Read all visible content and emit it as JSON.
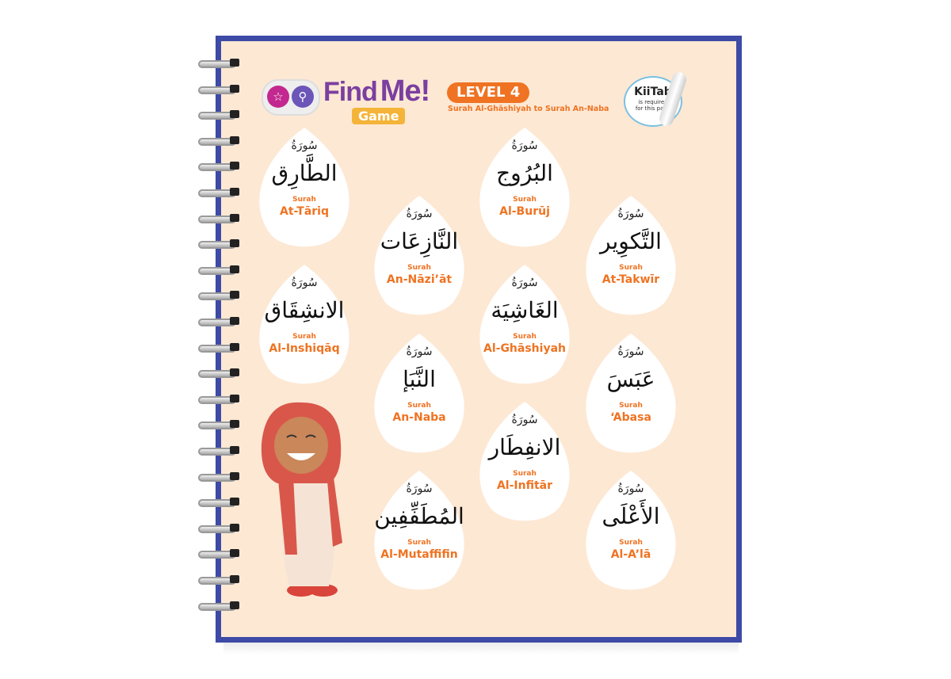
{
  "header": {
    "title_find": "Find",
    "title_me": "Me!",
    "game_label": "Game",
    "level": "LEVEL 4",
    "subtitle": "Surah Al-Ghāshiyah to Surah An-Naba",
    "kiitab_brand": "KiiTab",
    "kiitab_note_1": "is required",
    "kiitab_note_2": "for this page"
  },
  "icons": {
    "star": "star-icon",
    "search": "magnifier-icon",
    "pen": "kiitab-pen-icon"
  },
  "colors": {
    "border": "#3d4aa6",
    "background": "#fde8d4",
    "accent": "#ef7322",
    "title": "#7b3fa0"
  },
  "surah_label_ar": "سُورَةُ",
  "surah_label_en": "Surah",
  "surahs": [
    {
      "ar": "الطَّارِق",
      "en": "At-Tāriq"
    },
    {
      "ar": "البُرُوج",
      "en": "Al-Burūj"
    },
    {
      "ar": "النَّازِعَات",
      "en": "An-Nāzi’āt"
    },
    {
      "ar": "التَّكوِير",
      "en": "At-Takwīr"
    },
    {
      "ar": "الانشِقَاق",
      "en": "Al-Inshiqāq"
    },
    {
      "ar": "الغَاشِيَة",
      "en": "Al-Ghāshiyah"
    },
    {
      "ar": "النَّبَإ",
      "en": "An-Naba"
    },
    {
      "ar": "عَبَسَ",
      "en": "‘Abasa"
    },
    {
      "ar": "الانفِطَار",
      "en": "Al-Infitār"
    },
    {
      "ar": "المُطَفِّفِين",
      "en": "Al-Mutaffifin"
    },
    {
      "ar": "الأَعْلَى",
      "en": "Al-A’lā"
    }
  ]
}
